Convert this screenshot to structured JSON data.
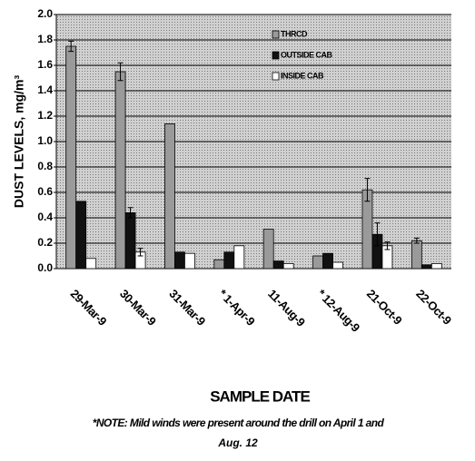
{
  "chart_data": {
    "type": "bar",
    "y_label": "DUST LEVELS, mg/m³",
    "x_label": "SAMPLE DATE",
    "note": [
      "*NOTE: Mild winds were present around the drill on April 1 and",
      "Aug. 12"
    ],
    "categories": [
      "29-Mar-9",
      "30-Mar-9",
      "31-Mar-9",
      "* 1-Apr-9",
      "11-Aug-9",
      "* 12-Aug-9",
      "21-Oct-9",
      "22-Oct-9"
    ],
    "series": [
      {
        "name": "THRCD",
        "color": "#9a9a9a",
        "values": [
          1.75,
          1.55,
          1.14,
          0.07,
          0.31,
          0.1,
          0.62,
          0.22
        ],
        "errors": [
          0.04,
          0.07,
          null,
          null,
          null,
          null,
          0.09,
          0.02
        ]
      },
      {
        "name": "OUTSIDE CAB",
        "color": "#111111",
        "values": [
          0.53,
          0.44,
          0.13,
          0.13,
          0.06,
          0.12,
          0.27,
          0.03
        ],
        "errors": [
          null,
          0.04,
          null,
          null,
          null,
          null,
          0.09,
          null
        ]
      },
      {
        "name": "INSIDE CAB",
        "color": "#ffffff",
        "values": [
          0.08,
          0.13,
          0.12,
          0.18,
          0.04,
          0.05,
          0.18,
          0.04
        ],
        "errors": [
          null,
          0.03,
          null,
          null,
          null,
          null,
          0.03,
          null
        ]
      }
    ],
    "ylim": [
      0,
      2
    ],
    "yticks": [
      {
        "value": 0,
        "label": "0.0"
      },
      {
        "value": 0.2,
        "label": "0.2"
      },
      {
        "value": 0.4,
        "label": "0.4"
      },
      {
        "value": 0.6,
        "label": "0.6"
      },
      {
        "value": 0.8,
        "label": "0.8"
      },
      {
        "value": 1,
        "label": "1.0"
      },
      {
        "value": 1.2,
        "label": "1.2"
      },
      {
        "value": 1.4,
        "label": "1.4"
      },
      {
        "value": 1.6,
        "label": "1.6"
      },
      {
        "value": 1.8,
        "label": "1.8"
      },
      {
        "value": 2,
        "label": "2.0"
      }
    ],
    "grid": true
  }
}
